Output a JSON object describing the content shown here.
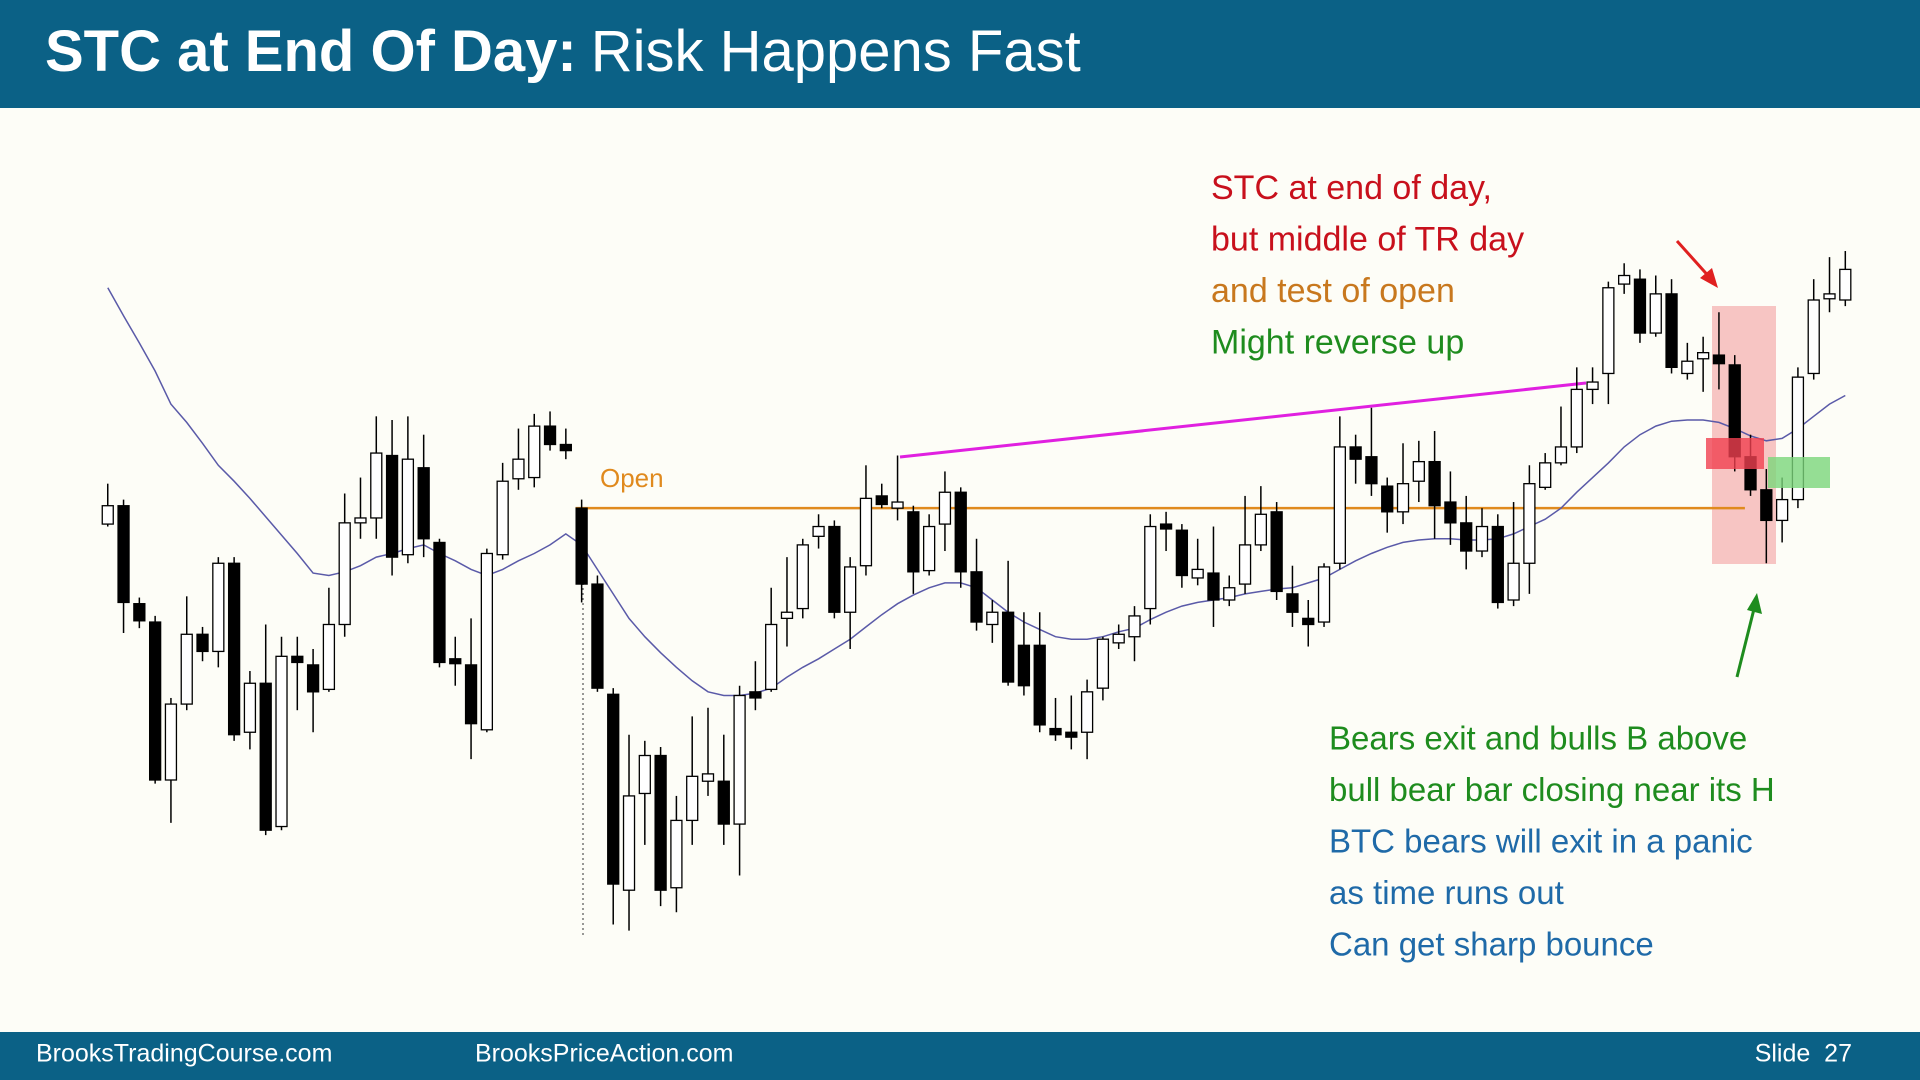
{
  "header": {
    "title_bold": "STC at End Of Day:",
    "title_rest": "Risk Happens Fast"
  },
  "chart_data": {
    "type": "candlestick",
    "open": [
      472,
      487,
      407,
      392,
      263,
      325,
      382,
      368,
      440,
      302,
      342,
      225,
      364,
      357,
      337,
      390,
      473,
      477,
      528,
      447,
      518,
      457,
      362,
      357,
      304,
      447,
      509,
      510,
      552,
      537,
      485,
      423,
      333,
      173,
      252,
      283,
      175,
      230,
      262,
      262,
      227,
      335,
      337,
      395,
      403,
      462,
      470,
      400,
      438,
      495,
      485,
      482,
      434,
      472,
      498,
      433,
      390,
      400,
      373,
      373,
      305,
      302,
      302,
      338,
      375,
      380,
      403,
      472,
      467,
      428,
      432,
      410,
      423,
      455,
      482,
      415,
      395,
      392,
      440,
      535,
      527,
      503,
      482,
      507,
      523,
      490,
      473,
      450,
      470,
      410,
      440,
      502,
      522,
      535,
      582,
      595,
      668,
      672,
      628,
      660,
      595,
      607,
      610,
      602,
      527,
      500,
      475,
      492,
      595,
      656,
      655
    ],
    "high": [
      505,
      492,
      412,
      397,
      330,
      413,
      388,
      445,
      445,
      352,
      390,
      380,
      380,
      370,
      420,
      497,
      510,
      560,
      557,
      560,
      545,
      460,
      380,
      395,
      452,
      522,
      550,
      562,
      564,
      550,
      492,
      430,
      338,
      300,
      295,
      290,
      250,
      315,
      322,
      300,
      340,
      360,
      420,
      445,
      460,
      480,
      475,
      445,
      520,
      505,
      528,
      487,
      480,
      515,
      502,
      460,
      410,
      442,
      400,
      400,
      330,
      332,
      345,
      380,
      390,
      405,
      480,
      482,
      472,
      460,
      470,
      430,
      495,
      503,
      490,
      438,
      410,
      440,
      560,
      545,
      567,
      510,
      538,
      540,
      548,
      515,
      495,
      485,
      480,
      490,
      520,
      530,
      568,
      600,
      600,
      670,
      685,
      680,
      675,
      672,
      620,
      625,
      645,
      610,
      545,
      517,
      510,
      600,
      672,
      690,
      695
    ],
    "low": [
      470,
      383,
      387,
      260,
      228,
      320,
      360,
      355,
      295,
      288,
      218,
      222,
      320,
      302,
      335,
      380,
      460,
      460,
      430,
      440,
      445,
      355,
      340,
      280,
      302,
      443,
      500,
      502,
      532,
      525,
      408,
      335,
      145,
      140,
      210,
      160,
      155,
      210,
      250,
      210,
      185,
      320,
      335,
      372,
      395,
      452,
      395,
      370,
      430,
      485,
      475,
      415,
      430,
      450,
      420,
      385,
      375,
      340,
      332,
      302,
      295,
      288,
      280,
      328,
      370,
      360,
      390,
      450,
      420,
      422,
      388,
      405,
      415,
      450,
      410,
      388,
      372,
      388,
      435,
      505,
      495,
      465,
      472,
      490,
      460,
      455,
      435,
      445,
      403,
      405,
      415,
      500,
      520,
      530,
      570,
      570,
      660,
      620,
      625,
      595,
      590,
      580,
      582,
      515,
      495,
      440,
      457,
      485,
      590,
      645,
      650
    ],
    "close": [
      487,
      408,
      393,
      263,
      325,
      382,
      368,
      440,
      300,
      342,
      222,
      364,
      359,
      335,
      390,
      473,
      477,
      530,
      445,
      525,
      460,
      359,
      358,
      309,
      448,
      507,
      525,
      552,
      537,
      532,
      423,
      338,
      178,
      250,
      283,
      173,
      230,
      266,
      268,
      227,
      332,
      330,
      390,
      400,
      455,
      470,
      400,
      437,
      493,
      488,
      490,
      433,
      470,
      498,
      433,
      392,
      400,
      343,
      340,
      308,
      300,
      298,
      335,
      378,
      382,
      397,
      470,
      468,
      430,
      435,
      410,
      420,
      455,
      480,
      417,
      400,
      390,
      437,
      535,
      525,
      505,
      482,
      505,
      523,
      487,
      473,
      450,
      470,
      408,
      440,
      505,
      522,
      535,
      582,
      588,
      665,
      675,
      628,
      660,
      600,
      605,
      612,
      603,
      527,
      500,
      475,
      492,
      592,
      655,
      660,
      680
    ],
    "ma": {
      "color": "#5a5aa8",
      "values": [
        665,
        642,
        620,
        597,
        570,
        555,
        538,
        520,
        507,
        493,
        478,
        463,
        448,
        432,
        430,
        433,
        438,
        445,
        448,
        452,
        455,
        448,
        442,
        435,
        430,
        435,
        442,
        448,
        455,
        464,
        455,
        435,
        415,
        395,
        380,
        367,
        355,
        344,
        335,
        332,
        332,
        334,
        338,
        347,
        355,
        362,
        370,
        378,
        388,
        398,
        407,
        414,
        420,
        424,
        424,
        420,
        410,
        400,
        392,
        386,
        380,
        378,
        378,
        380,
        384,
        387,
        394,
        400,
        405,
        408,
        410,
        412,
        415,
        417,
        419,
        420,
        424,
        428,
        435,
        442,
        448,
        453,
        457,
        459,
        460,
        460,
        459,
        459,
        460,
        464,
        470,
        476,
        485,
        498,
        510,
        522,
        535,
        545,
        552,
        556,
        557,
        557,
        555,
        550,
        544,
        540,
        542,
        550,
        560,
        570,
        577
      ]
    },
    "up_color": "#ffffff",
    "down_color": "#000000",
    "open_label": "Open",
    "open_line_color": "#e08a1e",
    "annotations_top": [
      {
        "text": "STC at end of day,",
        "color": "#c8101c"
      },
      {
        "text": "but middle of TR day",
        "color": "#c8101c"
      },
      {
        "text": "and test of open",
        "color": "#c8781e"
      },
      {
        "text": "Might reverse up",
        "color": "#1e8c1e"
      }
    ],
    "annotations_bottom": [
      {
        "text": "Bears exit and bulls B above",
        "color": "#1e8c1e"
      },
      {
        "text": "bull bear bar closing near its H",
        "color": "#1e8c1e"
      },
      {
        "text": "BTC bears will exit in a panic",
        "color": "#1f6aa8"
      },
      {
        "text": "as time runs out",
        "color": "#1f6aa8"
      },
      {
        "text": "Can get sharp bounce",
        "color": "#1f6aa8"
      }
    ]
  },
  "footer": {
    "left": "BrooksTradingCourse.com",
    "middle": "BrooksPriceAction.com",
    "slide": "Slide  27"
  }
}
